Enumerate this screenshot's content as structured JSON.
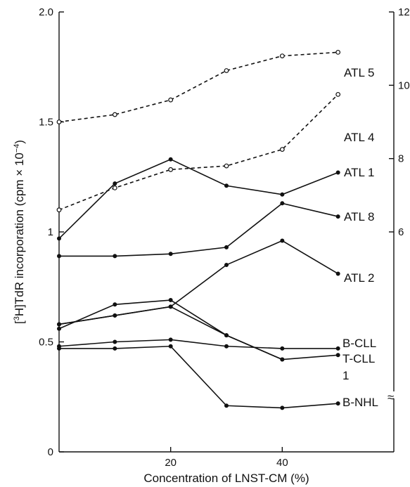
{
  "chart_data": {
    "type": "line",
    "xlabel": "Concentration of LNST-CM (%)",
    "ylabel_left": "[3H]TdR incorporation (cpm × 10−4)",
    "xlim": [
      0,
      60
    ],
    "ylim_left": [
      0,
      2.0
    ],
    "ylim_right": [
      0,
      12
    ],
    "x_ticks": [
      20,
      40
    ],
    "y_ticks_left": [
      0,
      0.5,
      1,
      1.5,
      2.0
    ],
    "y_tick_labels_left": [
      "0",
      "0.5",
      "1",
      "1.5",
      "2.0"
    ],
    "y_ticks_right": [
      6,
      8,
      10,
      12
    ],
    "y_tick_labels_right": [
      "6",
      "8",
      "10",
      "12"
    ],
    "right_axis_break": "≈",
    "grid": false,
    "series": [
      {
        "name": "ATL 5",
        "axis": "right",
        "style": "dashed",
        "marker": "open",
        "x": [
          0,
          10,
          20,
          30,
          40,
          50
        ],
        "y": [
          9.0,
          9.2,
          9.6,
          10.4,
          10.8,
          10.9
        ]
      },
      {
        "name": "ATL 4",
        "axis": "right",
        "style": "dashed",
        "marker": "open",
        "x": [
          0,
          10,
          20,
          30,
          40,
          50
        ],
        "y": [
          6.6,
          7.2,
          7.7,
          7.8,
          8.25,
          9.75
        ]
      },
      {
        "name": "ATL 1",
        "axis": "left",
        "style": "solid",
        "marker": "filled",
        "x": [
          0,
          10,
          20,
          30,
          40,
          50
        ],
        "y": [
          0.97,
          1.22,
          1.33,
          1.21,
          1.17,
          1.27
        ]
      },
      {
        "name": "ATL 8",
        "axis": "left",
        "style": "solid",
        "marker": "filled",
        "x": [
          0,
          10,
          20,
          30,
          40,
          50
        ],
        "y": [
          0.89,
          0.89,
          0.9,
          0.93,
          1.13,
          1.07
        ]
      },
      {
        "name": "ATL 2",
        "axis": "left",
        "style": "solid",
        "marker": "filled",
        "x": [
          0,
          10,
          20,
          30,
          40,
          50
        ],
        "y": [
          0.58,
          0.62,
          0.66,
          0.85,
          0.96,
          0.81
        ]
      },
      {
        "name": "",
        "axis": "left",
        "style": "solid",
        "marker": "filled",
        "x": [
          0,
          10,
          20,
          30,
          40
        ],
        "y": [
          0.56,
          0.67,
          0.69,
          0.53,
          0.42
        ]
      },
      {
        "name": "B-CLL",
        "axis": "left",
        "style": "solid",
        "marker": "filled",
        "x": [
          0,
          10,
          20,
          30,
          40,
          50
        ],
        "y": [
          0.48,
          0.5,
          0.51,
          0.48,
          0.47,
          0.47
        ]
      },
      {
        "name": "T-CLL 1",
        "axis": "left",
        "style": "solid",
        "marker": "filled",
        "x": [
          0,
          10,
          20,
          30,
          40,
          50
        ],
        "y": [
          0.58,
          0.62,
          0.66,
          0.53,
          0.42,
          0.44
        ]
      },
      {
        "name": "B-NHL",
        "axis": "left",
        "style": "solid",
        "marker": "filled",
        "x": [
          0,
          10,
          20,
          30,
          40,
          50
        ],
        "y": [
          0.47,
          0.47,
          0.48,
          0.21,
          0.2,
          0.22
        ]
      }
    ],
    "labels": {
      "ATL 5": "ATL 5",
      "ATL 4": "ATL 4",
      "ATL 1": "ATL 1",
      "ATL 8": "ATL 8",
      "ATL 2": "ATL 2",
      "B-CLL": "B-CLL",
      "T-CLL": "T-CLL",
      "T-CLL-num": "1",
      "B-NHL": "B-NHL"
    }
  }
}
